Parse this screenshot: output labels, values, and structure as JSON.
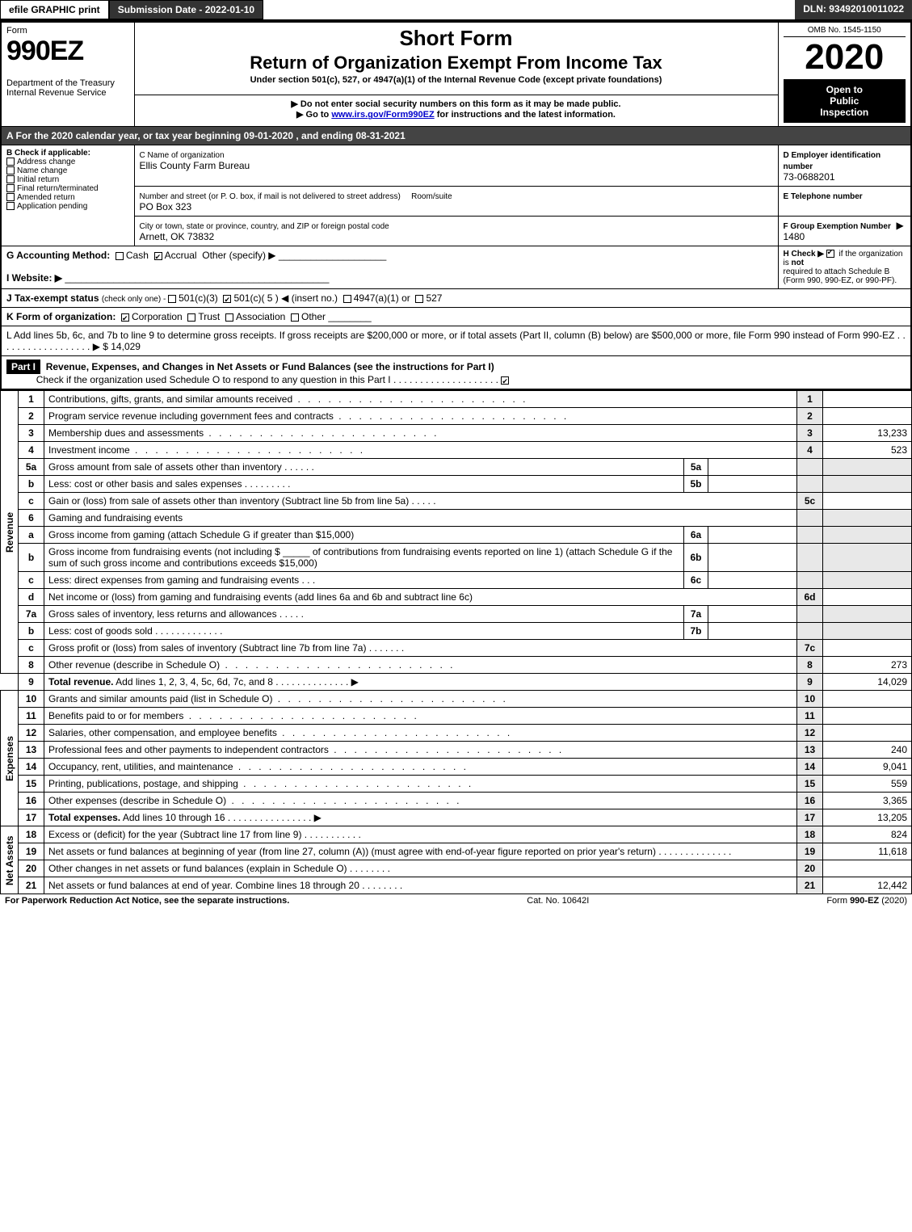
{
  "topBar": {
    "efile": "efile GRAPHIC print",
    "submissionLabel": "Submission Date - 2022-01-10",
    "dln": "DLN: 93492010011022"
  },
  "header": {
    "formWord": "Form",
    "formNumber": "990EZ",
    "shortForm": "Short Form",
    "title": "Return of Organization Exempt From Income Tax",
    "subtitle": "Under section 501(c), 527, or 4947(a)(1) of the Internal Revenue Code (except private foundations)",
    "warning": "▶ Do not enter social security numbers on this form as it may be made public.",
    "gotoPrefix": "▶ Go to ",
    "gotoLink": "www.irs.gov/Form990EZ",
    "gotoSuffix": " for instructions and the latest information.",
    "omb": "OMB No. 1545-1150",
    "year": "2020",
    "openTo": "Open to",
    "public": "Public",
    "inspection": "Inspection",
    "dept1": "Department of the Treasury",
    "dept2": "Internal Revenue Service"
  },
  "rowA": "A For the 2020 calendar year, or tax year beginning 09-01-2020 , and ending 08-31-2021",
  "sectionB": {
    "label": "B  Check if applicable:",
    "addressChange": "Address change",
    "nameChange": "Name change",
    "initialReturn": "Initial return",
    "finalReturn": "Final return/terminated",
    "amendedReturn": "Amended return",
    "appPending": "Application pending"
  },
  "sectionC": {
    "nameLabel": "C Name of organization",
    "name": "Ellis County Farm Bureau",
    "addressLabel": "Number and street (or P. O. box, if mail is not delivered to street address)",
    "roomLabel": "Room/suite",
    "address": "PO Box 323",
    "cityLabel": "City or town, state or province, country, and ZIP or foreign postal code",
    "city": "Arnett, OK  73832"
  },
  "sectionD": {
    "einLabel": "D Employer identification number",
    "ein": "73-0688201",
    "phoneLabel": "E Telephone number",
    "groupLabel": "F Group Exemption Number",
    "groupArrow": "▶ 1480"
  },
  "rowG": {
    "label": "G Accounting Method:",
    "cash": "Cash",
    "accrual": "Accrual",
    "other": "Other (specify) ▶"
  },
  "rowH": {
    "label": "H  Check ▶",
    "text1": "if the organization is ",
    "not": "not",
    "text2": "required to attach Schedule B",
    "text3": "(Form 990, 990-EZ, or 990-PF)."
  },
  "rowI": "I Website: ▶",
  "rowJ": {
    "label": "J Tax-exempt status ",
    "small": "(check only one) - ",
    "opt1": "501(c)(3)",
    "opt2": "501(c)( 5 ) ◀ (insert no.)",
    "opt3": "4947(a)(1) or",
    "opt4": "527"
  },
  "rowK": {
    "label": "K Form of organization:",
    "corp": "Corporation",
    "trust": "Trust",
    "assoc": "Association",
    "other": "Other"
  },
  "rowL": {
    "text": "L Add lines 5b, 6c, and 7b to line 9 to determine gross receipts. If gross receipts are $200,000 or more, or if total assets (Part II, column (B) below) are $500,000 or more, file Form 990 instead of Form 990-EZ",
    "amount": "▶ $ 14,029"
  },
  "part1": {
    "label": "Part I",
    "title": "Revenue, Expenses, and Changes in Net Assets or Fund Balances (see the instructions for Part I)",
    "checkNote": "Check if the organization used Schedule O to respond to any question in this Part I"
  },
  "sideLabels": {
    "revenue": "Revenue",
    "expenses": "Expenses",
    "netAssets": "Net Assets"
  },
  "lines": {
    "l1": {
      "num": "1",
      "text": "Contributions, gifts, grants, and similar amounts received",
      "col": "1",
      "val": ""
    },
    "l2": {
      "num": "2",
      "text": "Program service revenue including government fees and contracts",
      "col": "2",
      "val": ""
    },
    "l3": {
      "num": "3",
      "text": "Membership dues and assessments",
      "col": "3",
      "val": "13,233"
    },
    "l4": {
      "num": "4",
      "text": "Investment income",
      "col": "4",
      "val": "523"
    },
    "l5a": {
      "num": "5a",
      "text": "Gross amount from sale of assets other than inventory",
      "sub": "5a",
      "subval": ""
    },
    "l5b": {
      "num": "b",
      "text": "Less: cost or other basis and sales expenses",
      "sub": "5b",
      "subval": ""
    },
    "l5c": {
      "num": "c",
      "text": "Gain or (loss) from sale of assets other than inventory (Subtract line 5b from line 5a)",
      "col": "5c",
      "val": ""
    },
    "l6": {
      "num": "6",
      "text": "Gaming and fundraising events"
    },
    "l6a": {
      "num": "a",
      "text": "Gross income from gaming (attach Schedule G if greater than $15,000)",
      "sub": "6a",
      "subval": ""
    },
    "l6b": {
      "num": "b",
      "text1": "Gross income from fundraising events (not including $",
      "text2": "of contributions from fundraising events reported on line 1) (attach Schedule G if the sum of such gross income and contributions exceeds $15,000)",
      "sub": "6b",
      "subval": ""
    },
    "l6c": {
      "num": "c",
      "text": "Less: direct expenses from gaming and fundraising events",
      "sub": "6c",
      "subval": ""
    },
    "l6d": {
      "num": "d",
      "text": "Net income or (loss) from gaming and fundraising events (add lines 6a and 6b and subtract line 6c)",
      "col": "6d",
      "val": ""
    },
    "l7a": {
      "num": "7a",
      "text": "Gross sales of inventory, less returns and allowances",
      "sub": "7a",
      "subval": ""
    },
    "l7b": {
      "num": "b",
      "text": "Less: cost of goods sold",
      "sub": "7b",
      "subval": ""
    },
    "l7c": {
      "num": "c",
      "text": "Gross profit or (loss) from sales of inventory (Subtract line 7b from line 7a)",
      "col": "7c",
      "val": ""
    },
    "l8": {
      "num": "8",
      "text": "Other revenue (describe in Schedule O)",
      "col": "8",
      "val": "273"
    },
    "l9": {
      "num": "9",
      "textBold": "Total revenue.",
      "text": " Add lines 1, 2, 3, 4, 5c, 6d, 7c, and 8",
      "col": "9",
      "val": "14,029"
    },
    "l10": {
      "num": "10",
      "text": "Grants and similar amounts paid (list in Schedule O)",
      "col": "10",
      "val": ""
    },
    "l11": {
      "num": "11",
      "text": "Benefits paid to or for members",
      "col": "11",
      "val": ""
    },
    "l12": {
      "num": "12",
      "text": "Salaries, other compensation, and employee benefits",
      "col": "12",
      "val": ""
    },
    "l13": {
      "num": "13",
      "text": "Professional fees and other payments to independent contractors",
      "col": "13",
      "val": "240"
    },
    "l14": {
      "num": "14",
      "text": "Occupancy, rent, utilities, and maintenance",
      "col": "14",
      "val": "9,041"
    },
    "l15": {
      "num": "15",
      "text": "Printing, publications, postage, and shipping",
      "col": "15",
      "val": "559"
    },
    "l16": {
      "num": "16",
      "text": "Other expenses (describe in Schedule O)",
      "col": "16",
      "val": "3,365"
    },
    "l17": {
      "num": "17",
      "textBold": "Total expenses.",
      "text": " Add lines 10 through 16",
      "col": "17",
      "val": "13,205"
    },
    "l18": {
      "num": "18",
      "text": "Excess or (deficit) for the year (Subtract line 17 from line 9)",
      "col": "18",
      "val": "824"
    },
    "l19": {
      "num": "19",
      "text": "Net assets or fund balances at beginning of year (from line 27, column (A)) (must agree with end-of-year figure reported on prior year's return)",
      "col": "19",
      "val": "11,618"
    },
    "l20": {
      "num": "20",
      "text": "Other changes in net assets or fund balances (explain in Schedule O)",
      "col": "20",
      "val": ""
    },
    "l21": {
      "num": "21",
      "text": "Net assets or fund balances at end of year. Combine lines 18 through 20",
      "col": "21",
      "val": "12,442"
    }
  },
  "footer": {
    "paperwork": "For Paperwork Reduction Act Notice, see the separate instructions.",
    "catNo": "Cat. No. 10642I",
    "formRef": "Form 990-EZ (2020)"
  }
}
